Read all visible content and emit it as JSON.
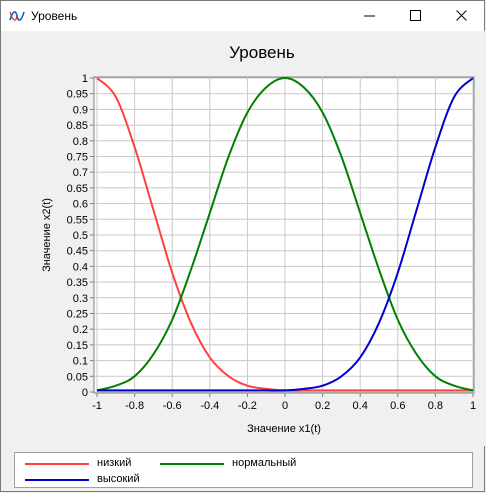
{
  "window": {
    "title": "Уровень"
  },
  "chart_data": {
    "type": "line",
    "title": "Уровень",
    "xlabel": "Значение x1(t)",
    "ylabel": "Значение x2(t)",
    "xlim": [
      -1,
      1
    ],
    "ylim": [
      0,
      1
    ],
    "xticks": [
      -1,
      -0.8,
      -0.6,
      -0.4,
      -0.2,
      0,
      0.2,
      0.4,
      0.6,
      0.8,
      1
    ],
    "xtick_labels": [
      "-1",
      "-0.8",
      "-0.6",
      "-0.4",
      "-0.2",
      "0",
      "0.2",
      "0.4",
      "0.6",
      "0.8",
      "1"
    ],
    "yticks": [
      0,
      0.05,
      0.1,
      0.15,
      0.2,
      0.25,
      0.3,
      0.35,
      0.4,
      0.45,
      0.5,
      0.55,
      0.6,
      0.65,
      0.7,
      0.75,
      0.8,
      0.85,
      0.9,
      0.95,
      1
    ],
    "ytick_labels": [
      "0",
      "0.05",
      "0.1",
      "0.15",
      "0.2",
      "0.25",
      "0.3",
      "0.35",
      "0.4",
      "0.45",
      "0.5",
      "0.55",
      "0.6",
      "0.65",
      "0.7",
      "0.75",
      "0.8",
      "0.85",
      "0.9",
      "0.95",
      "1"
    ],
    "grid": true,
    "legend_position": "bottom",
    "x": [
      -1,
      -0.9,
      -0.8,
      -0.7,
      -0.6,
      -0.5,
      -0.4,
      -0.3,
      -0.2,
      -0.1,
      0,
      0.1,
      0.2,
      0.3,
      0.4,
      0.5,
      0.6,
      0.7,
      0.8,
      0.9,
      1
    ],
    "series": [
      {
        "name": "низкий",
        "color": "#ff4040",
        "values": [
          1.0,
          0.94,
          0.78,
          0.58,
          0.38,
          0.22,
          0.11,
          0.05,
          0.02,
          0.01,
          0.005,
          0.005,
          0.005,
          0.005,
          0.005,
          0.005,
          0.005,
          0.005,
          0.005,
          0.005,
          0.005
        ]
      },
      {
        "name": "нормальный",
        "color": "#008000",
        "values": [
          0.005,
          0.02,
          0.05,
          0.12,
          0.23,
          0.39,
          0.57,
          0.75,
          0.89,
          0.97,
          1.0,
          0.97,
          0.89,
          0.75,
          0.57,
          0.39,
          0.23,
          0.12,
          0.05,
          0.02,
          0.005
        ]
      },
      {
        "name": "высокий",
        "color": "#0000d0",
        "values": [
          0.005,
          0.005,
          0.005,
          0.005,
          0.005,
          0.005,
          0.005,
          0.005,
          0.005,
          0.005,
          0.005,
          0.01,
          0.02,
          0.05,
          0.11,
          0.22,
          0.38,
          0.58,
          0.78,
          0.94,
          1.0
        ]
      }
    ]
  }
}
